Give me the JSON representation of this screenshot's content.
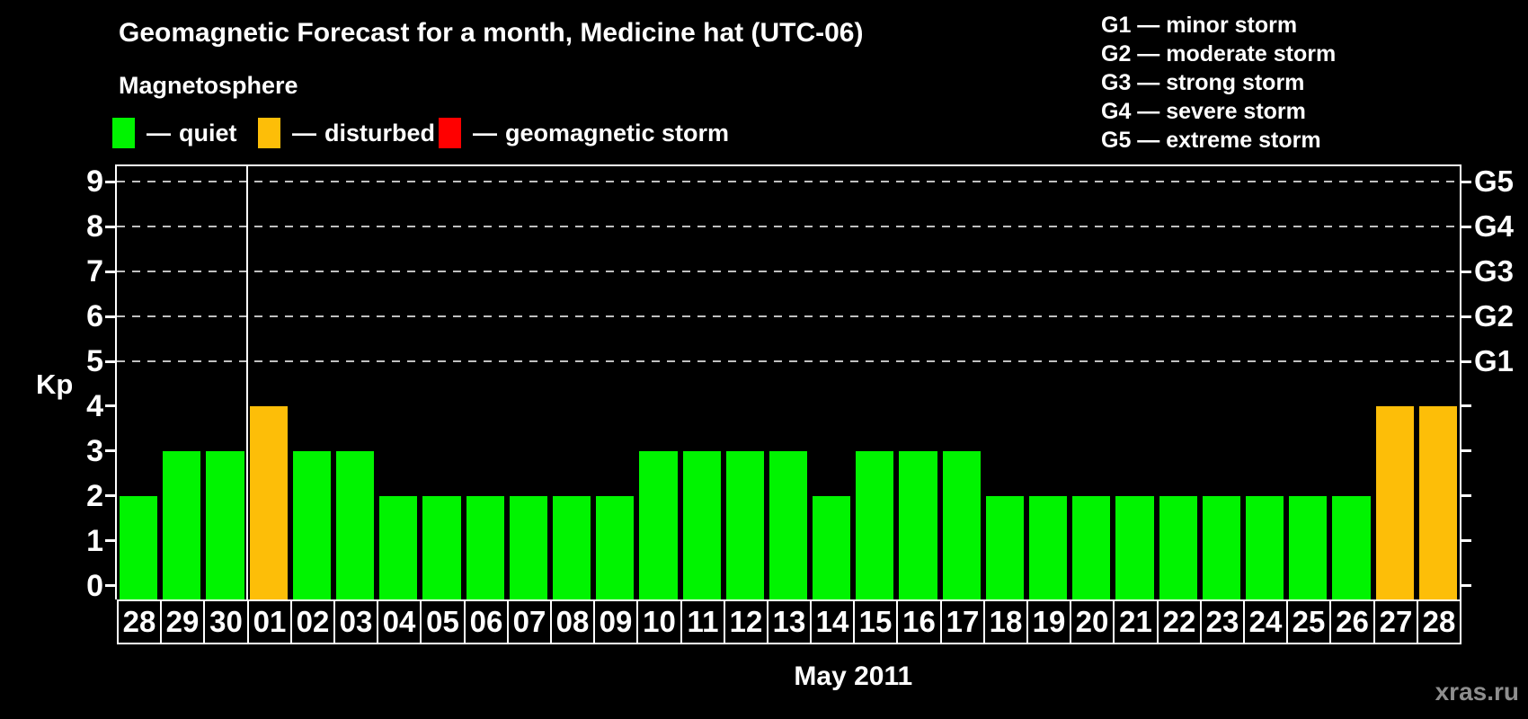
{
  "title": "Geomagnetic Forecast for a month, Medicine hat (UTC-06)",
  "magnetosphere": {
    "heading": "Magnetosphere",
    "items": [
      {
        "dash": "—",
        "label": "quiet",
        "color": "#00f400"
      },
      {
        "dash": "—",
        "label": "disturbed",
        "color": "#fdbe08"
      },
      {
        "dash": "—",
        "label": "geomagnetic storm",
        "color": "#ff0000"
      }
    ]
  },
  "g_scale_legend": [
    "G1 — minor storm",
    "G2 — moderate storm",
    "G3 — strong storm",
    "G4 — severe storm",
    "G5 — extreme storm"
  ],
  "watermark": "xras.ru",
  "chart_data": {
    "type": "bar",
    "title": "Geomagnetic Forecast for a month, Medicine hat (UTC-06)",
    "xlabel": "May 2011",
    "ylabel": "Kp",
    "ylim": [
      -0.31,
      9.35
    ],
    "categories": [
      "28",
      "29",
      "30",
      "01",
      "02",
      "03",
      "04",
      "05",
      "06",
      "07",
      "08",
      "09",
      "10",
      "11",
      "12",
      "13",
      "14",
      "15",
      "16",
      "17",
      "18",
      "19",
      "20",
      "21",
      "22",
      "23",
      "24",
      "25",
      "26",
      "27",
      "28"
    ],
    "values": [
      2,
      3,
      3,
      4,
      3,
      3,
      2,
      2,
      2,
      2,
      2,
      2,
      3,
      3,
      3,
      3,
      2,
      3,
      3,
      3,
      2,
      2,
      2,
      2,
      2,
      2,
      2,
      2,
      2,
      4,
      4
    ],
    "statuses": [
      "quiet",
      "quiet",
      "quiet",
      "disturbed",
      "quiet",
      "quiet",
      "quiet",
      "quiet",
      "quiet",
      "quiet",
      "quiet",
      "quiet",
      "quiet",
      "quiet",
      "quiet",
      "quiet",
      "quiet",
      "quiet",
      "quiet",
      "quiet",
      "quiet",
      "quiet",
      "quiet",
      "quiet",
      "quiet",
      "quiet",
      "quiet",
      "quiet",
      "quiet",
      "disturbed",
      "disturbed"
    ],
    "status_colors": {
      "quiet": "#00f400",
      "disturbed": "#fdbe08",
      "storm": "#ff0000"
    },
    "y_ticks": [
      0,
      1,
      2,
      3,
      4,
      5,
      6,
      7,
      8,
      9
    ],
    "gridline_levels": [
      5,
      6,
      7,
      8,
      9
    ],
    "right_axis": [
      {
        "kp": 5,
        "label": "G1"
      },
      {
        "kp": 6,
        "label": "G2"
      },
      {
        "kp": 7,
        "label": "G3"
      },
      {
        "kp": 8,
        "label": "G4"
      },
      {
        "kp": 9,
        "label": "G5"
      }
    ],
    "month_separator_after_index": 2,
    "legend_position": "top",
    "grid": "horizontal dashed at Kp 5–9"
  }
}
